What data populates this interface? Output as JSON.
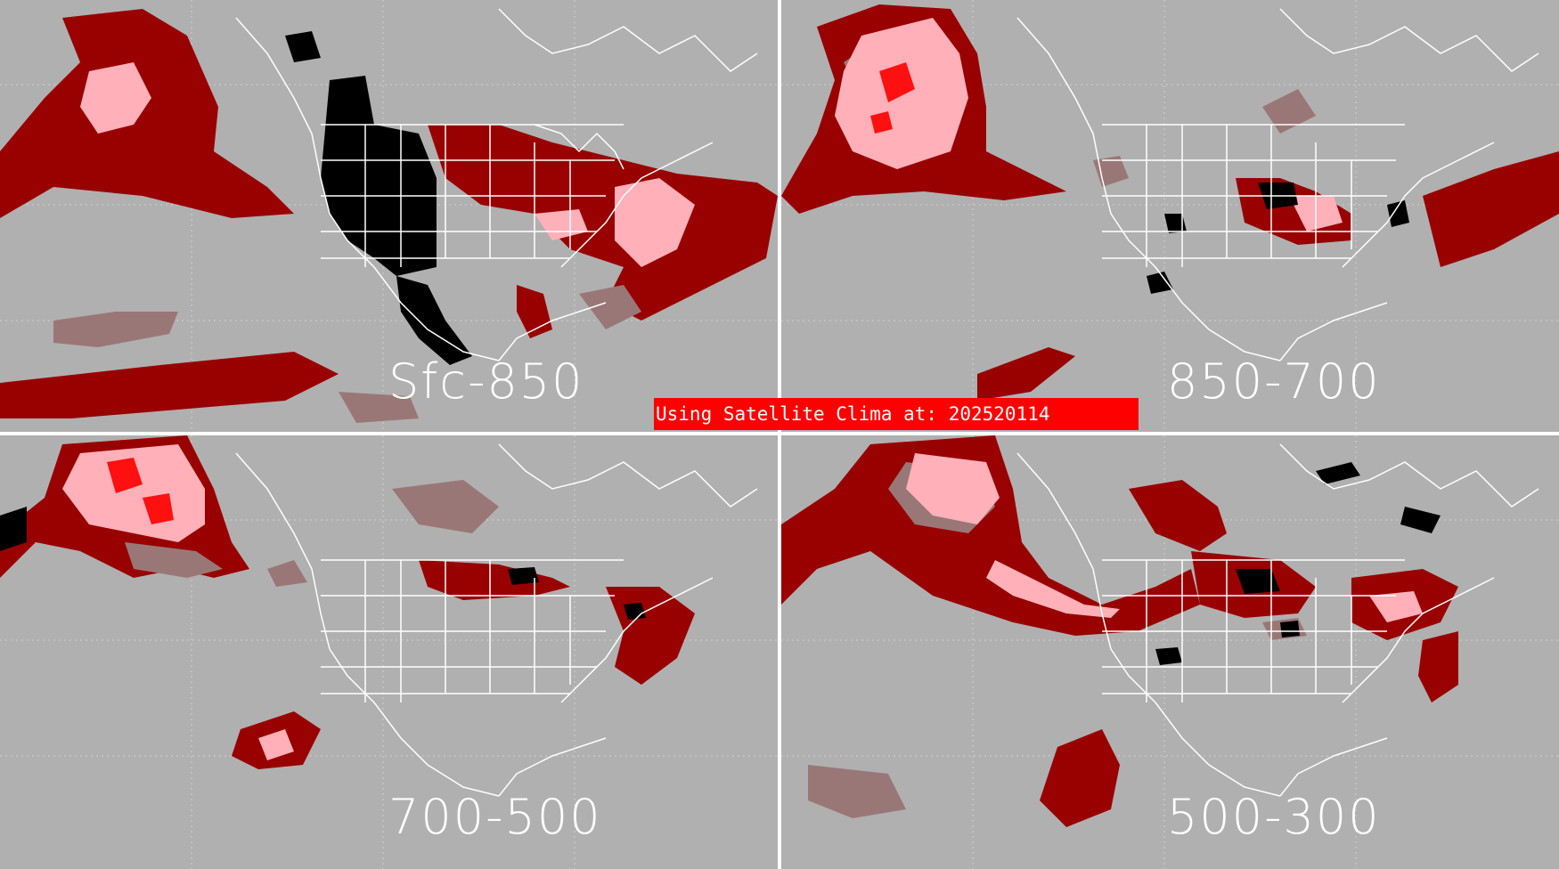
{
  "panels": {
    "top_left": {
      "label": "Sfc-850"
    },
    "top_right": {
      "label": "850-700"
    },
    "bottom_left": {
      "label": "700-500"
    },
    "bottom_right": {
      "label": "500-300"
    }
  },
  "banner": {
    "text": "Using Satellite Clima at: 202520114"
  },
  "colors": {
    "background": "#b0b0b0",
    "dark_red": "#990000",
    "grey_red": "#9a7777",
    "pink": "#ffb0b8",
    "bright_red": "#ff1010",
    "black": "#000000",
    "coast": "#ffffff",
    "divider": "#ffffff",
    "banner": "#ff0000"
  }
}
